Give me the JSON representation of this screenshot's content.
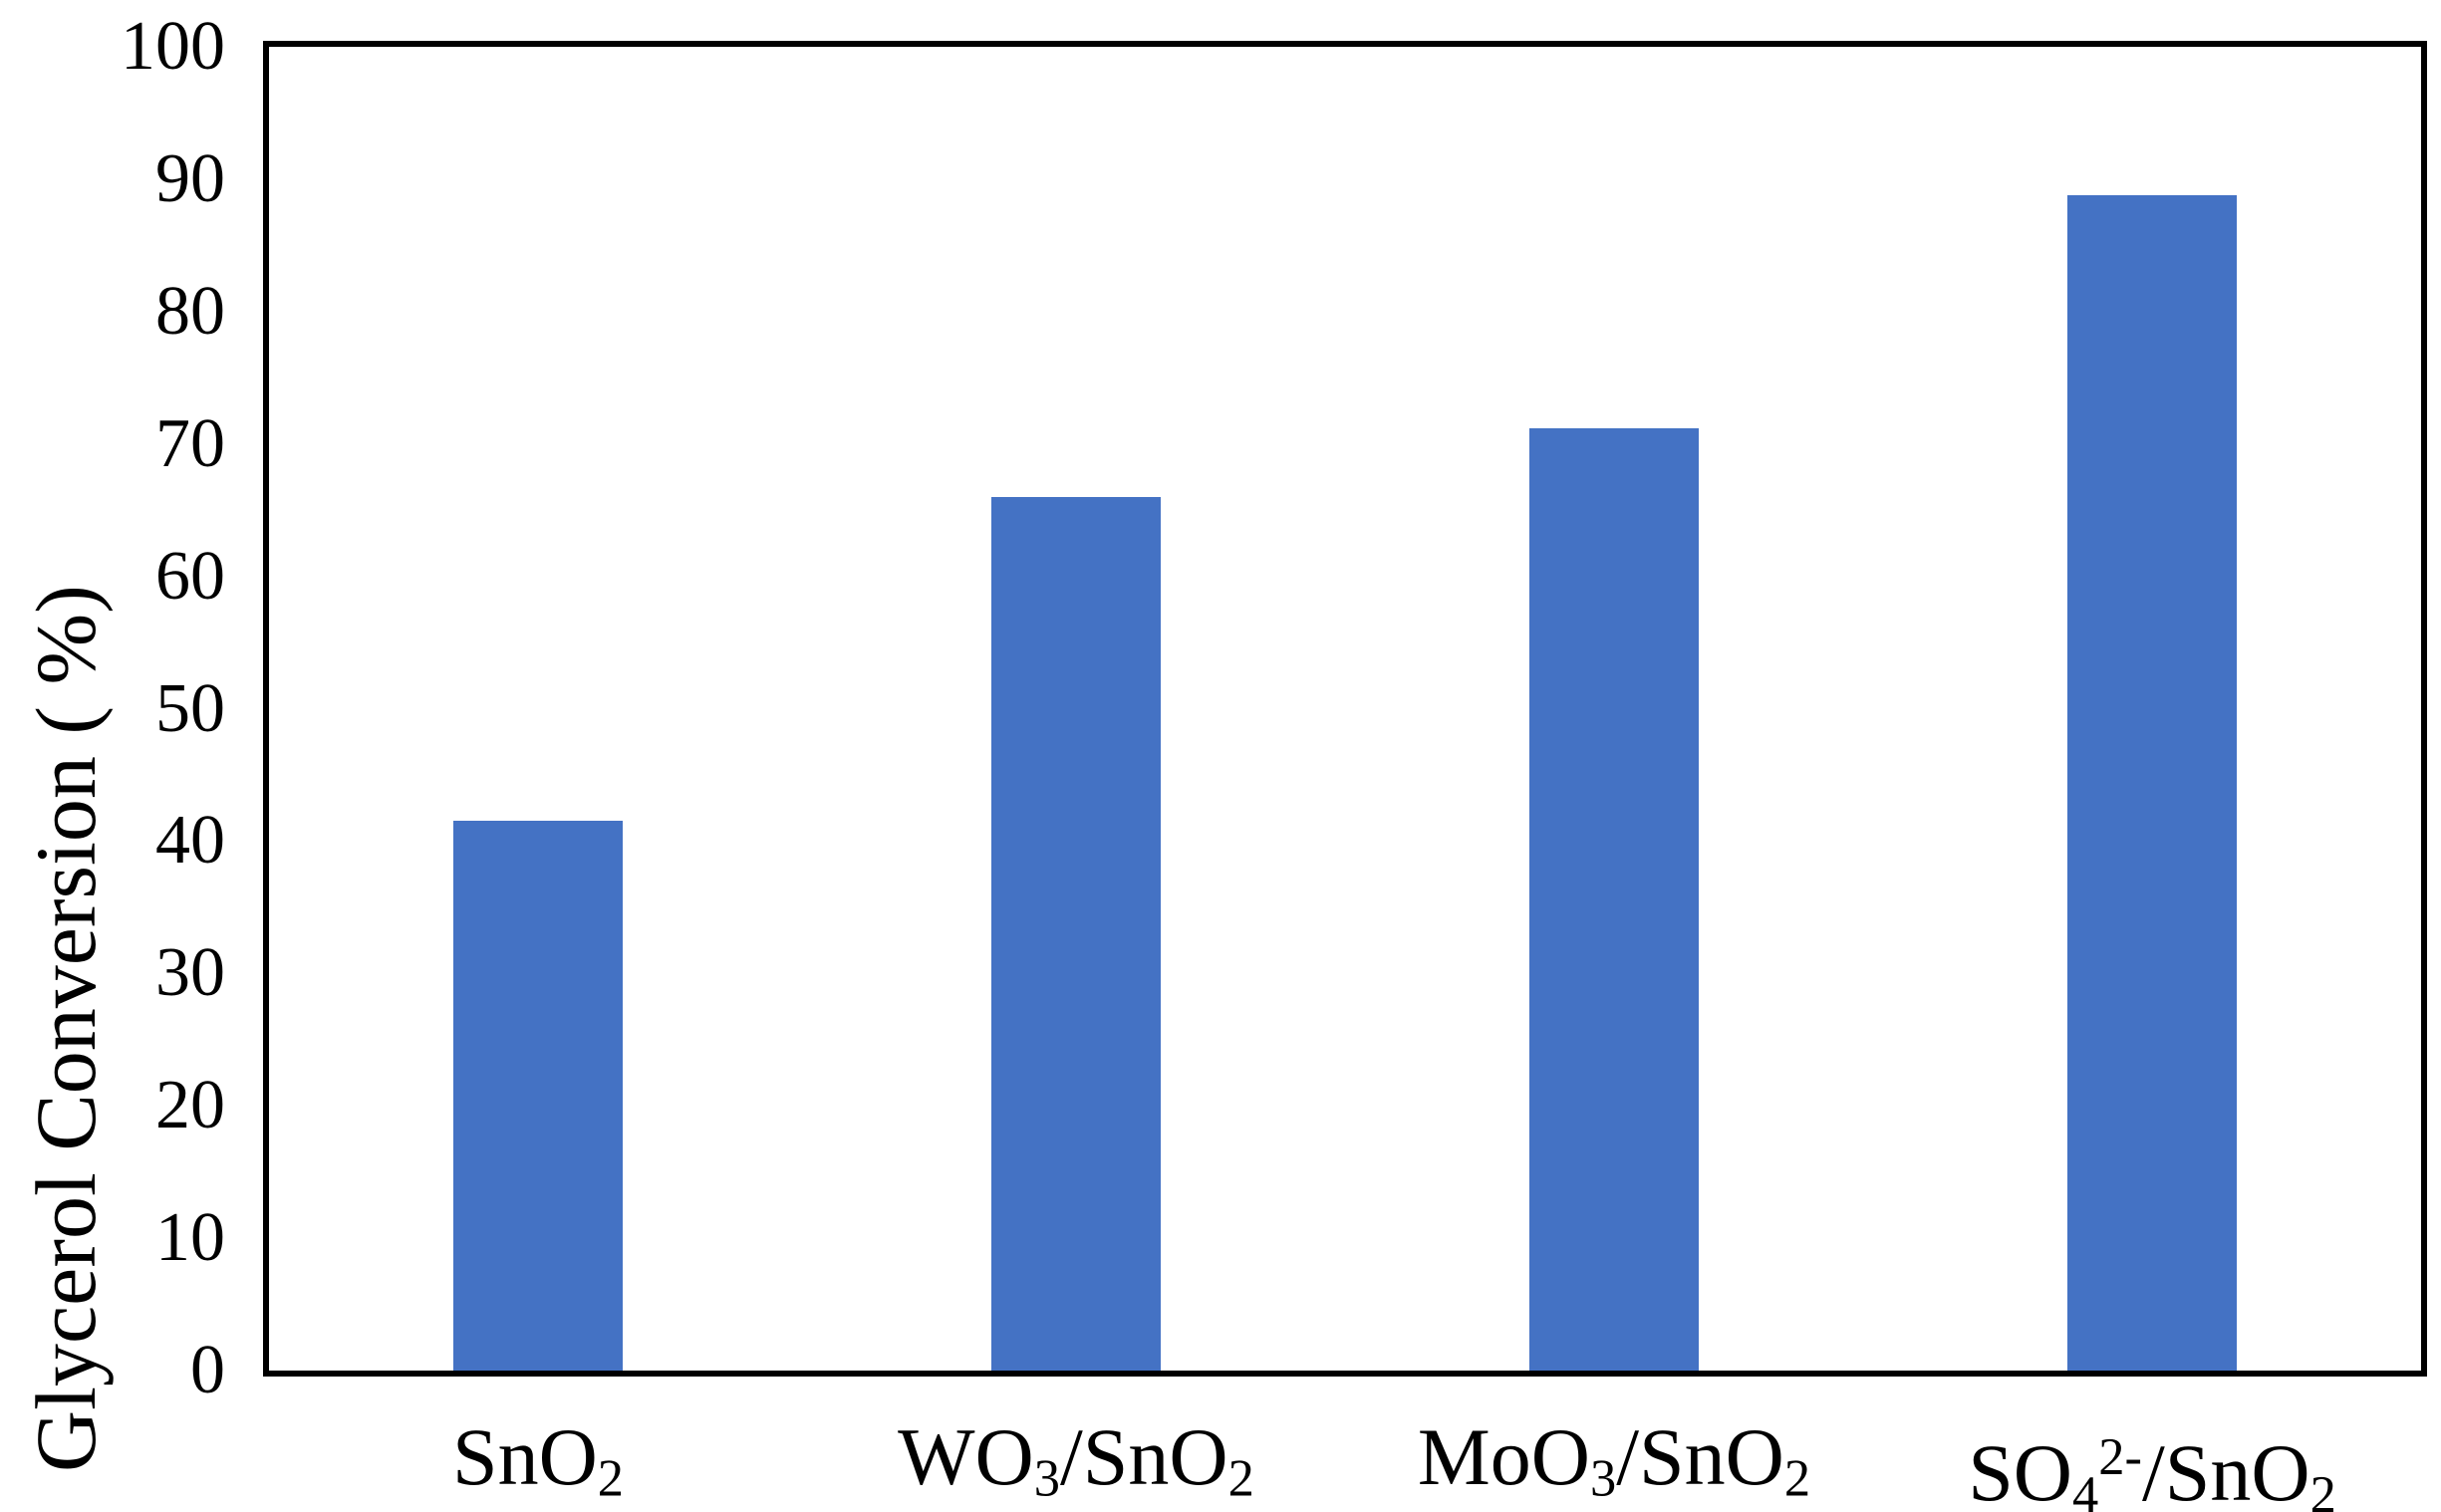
{
  "chart_data": {
    "type": "bar",
    "title": "",
    "xlabel": "",
    "ylabel": "Glycerol Conversion ( %)",
    "categories": [
      "SnO₂",
      "WO₃/SnO₂",
      "MoO₃/SnO₂",
      "SO₄²⁻/SnO₂"
    ],
    "categories_rich": [
      [
        {
          "t": "SnO"
        },
        {
          "t": "2",
          "v": "sub"
        }
      ],
      [
        {
          "t": "WO"
        },
        {
          "t": "3",
          "v": "sub"
        },
        {
          "t": "/SnO"
        },
        {
          "t": "2",
          "v": "sub"
        }
      ],
      [
        {
          "t": "MoO"
        },
        {
          "t": "3",
          "v": "sub"
        },
        {
          "t": "/SnO"
        },
        {
          "t": "2",
          "v": "sub"
        }
      ],
      [
        {
          "t": "SO"
        },
        {
          "t": "4",
          "v": "sub"
        },
        {
          "t": "2-",
          "v": "sup"
        },
        {
          "t": "/SnO"
        },
        {
          "t": "2",
          "v": "sub"
        }
      ]
    ],
    "values": [
      41.5,
      66,
      71.2,
      88.8
    ],
    "ylim": [
      0,
      100
    ],
    "yticks": [
      0,
      10,
      20,
      30,
      40,
      50,
      60,
      70,
      80,
      90,
      100
    ],
    "grid": false,
    "legend": false,
    "bar_color": "#4472C4",
    "axis_color": "#000000",
    "bar_width_fraction": 0.315
  }
}
